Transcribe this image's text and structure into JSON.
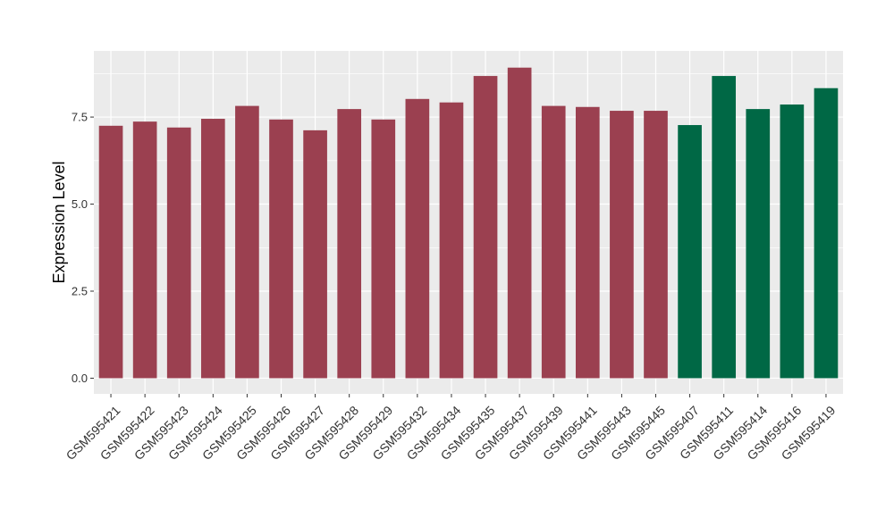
{
  "chart_data": {
    "type": "bar",
    "ylabel": "Expression Level",
    "ylim": [
      -0.45,
      9.4
    ],
    "yticks": [
      0.0,
      2.5,
      5.0,
      7.5
    ],
    "ytick_labels": [
      "0.0",
      "2.5",
      "5.0",
      "7.5"
    ],
    "grid": true,
    "legend": "none",
    "categories": [
      "GSM595421",
      "GSM595422",
      "GSM595423",
      "GSM595424",
      "GSM595425",
      "GSM595426",
      "GSM595427",
      "GSM595428",
      "GSM595429",
      "GSM595432",
      "GSM595434",
      "GSM595435",
      "GSM595437",
      "GSM595439",
      "GSM595441",
      "GSM595443",
      "GSM595445",
      "GSM595407",
      "GSM595411",
      "GSM595414",
      "GSM595416",
      "GSM595419"
    ],
    "values": [
      7.25,
      7.37,
      7.2,
      7.45,
      7.82,
      7.43,
      7.12,
      7.73,
      7.43,
      8.02,
      7.92,
      8.68,
      8.92,
      7.82,
      7.79,
      7.68,
      7.68,
      7.27,
      8.68,
      7.73,
      7.86,
      8.33
    ],
    "bar_colors": [
      "#9b4050",
      "#9b4050",
      "#9b4050",
      "#9b4050",
      "#9b4050",
      "#9b4050",
      "#9b4050",
      "#9b4050",
      "#9b4050",
      "#9b4050",
      "#9b4050",
      "#9b4050",
      "#9b4050",
      "#9b4050",
      "#9b4050",
      "#9b4050",
      "#9b4050",
      "#006845",
      "#006845",
      "#006845",
      "#006845",
      "#006845"
    ],
    "panel_background": "#ebebeb",
    "grid_color": "#ffffff"
  }
}
